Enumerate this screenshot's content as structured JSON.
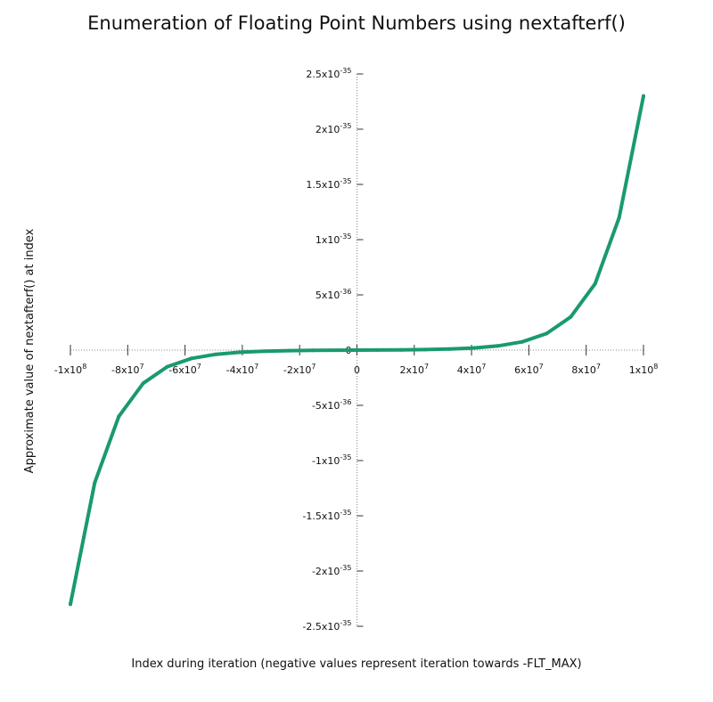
{
  "chart_data": {
    "type": "line",
    "title": "Enumeration of Floating Point Numbers using nextafterf()",
    "xlabel": "Index during iteration (negative values represent iteration towards -FLT_MAX)",
    "ylabel": "Approximate value of nextafterf() at index",
    "xlim": [
      -100000000,
      100000000
    ],
    "ylim": [
      -2.5e-35,
      2.5e-35
    ],
    "grid": false,
    "legend": "none",
    "x_ticks": [
      {
        "value": -100000000,
        "mant": "-1x10",
        "exp": "8"
      },
      {
        "value": -80000000,
        "mant": "-8x10",
        "exp": "7"
      },
      {
        "value": -60000000,
        "mant": "-6x10",
        "exp": "7"
      },
      {
        "value": -40000000,
        "mant": "-4x10",
        "exp": "7"
      },
      {
        "value": -20000000,
        "mant": "-2x10",
        "exp": "7"
      },
      {
        "value": 0,
        "mant": "0",
        "exp": ""
      },
      {
        "value": 20000000,
        "mant": "2x10",
        "exp": "7"
      },
      {
        "value": 40000000,
        "mant": "4x10",
        "exp": "7"
      },
      {
        "value": 60000000,
        "mant": "6x10",
        "exp": "7"
      },
      {
        "value": 80000000,
        "mant": "8x10",
        "exp": "7"
      },
      {
        "value": 100000000,
        "mant": "1x10",
        "exp": "8"
      }
    ],
    "y_ticks": [
      {
        "value": 2.5e-35,
        "mant": "2.5x10",
        "exp": "-35"
      },
      {
        "value": 2e-35,
        "mant": "2x10",
        "exp": "-35"
      },
      {
        "value": 1.5e-35,
        "mant": "1.5x10",
        "exp": "-35"
      },
      {
        "value": 1e-35,
        "mant": "1x10",
        "exp": "-35"
      },
      {
        "value": 5e-36,
        "mant": "5x10",
        "exp": "-36"
      },
      {
        "value": 0,
        "mant": "0",
        "exp": ""
      },
      {
        "value": -5e-36,
        "mant": "-5x10",
        "exp": "-36"
      },
      {
        "value": -1e-35,
        "mant": "-1x10",
        "exp": "-35"
      },
      {
        "value": -1.5e-35,
        "mant": "-1.5x10",
        "exp": "-35"
      },
      {
        "value": -2e-35,
        "mant": "-2x10",
        "exp": "-35"
      },
      {
        "value": -2.5e-35,
        "mant": "-2.5x10",
        "exp": "-35"
      }
    ],
    "series": [
      {
        "color": "#1a9a6c",
        "points": [
          [
            -100000000,
            -2.3e-35
          ],
          [
            -91500000,
            -1.2e-35
          ],
          [
            -83100000,
            -6e-36
          ],
          [
            -74600000,
            -3e-36
          ],
          [
            -66200000,
            -1.5e-36
          ],
          [
            -57700000,
            -7.5e-37
          ],
          [
            -49200000,
            -3.8e-37
          ],
          [
            -40800000,
            -1.9e-37
          ],
          [
            -32300000,
            -9.4e-38
          ],
          [
            -23800000,
            -4.7e-38
          ],
          [
            -15400000,
            -2.3e-38
          ],
          [
            -6900000,
            -1.2e-38
          ],
          [
            0,
            0
          ],
          [
            6900000,
            1.2e-38
          ],
          [
            15400000,
            2.3e-38
          ],
          [
            23800000,
            4.7e-38
          ],
          [
            32300000,
            9.4e-38
          ],
          [
            40800000,
            1.9e-37
          ],
          [
            49200000,
            3.8e-37
          ],
          [
            57700000,
            7.5e-37
          ],
          [
            66200000,
            1.5e-36
          ],
          [
            74600000,
            3e-36
          ],
          [
            83100000,
            6e-36
          ],
          [
            91500000,
            1.2e-35
          ],
          [
            100000000,
            2.3e-35
          ]
        ]
      }
    ]
  }
}
